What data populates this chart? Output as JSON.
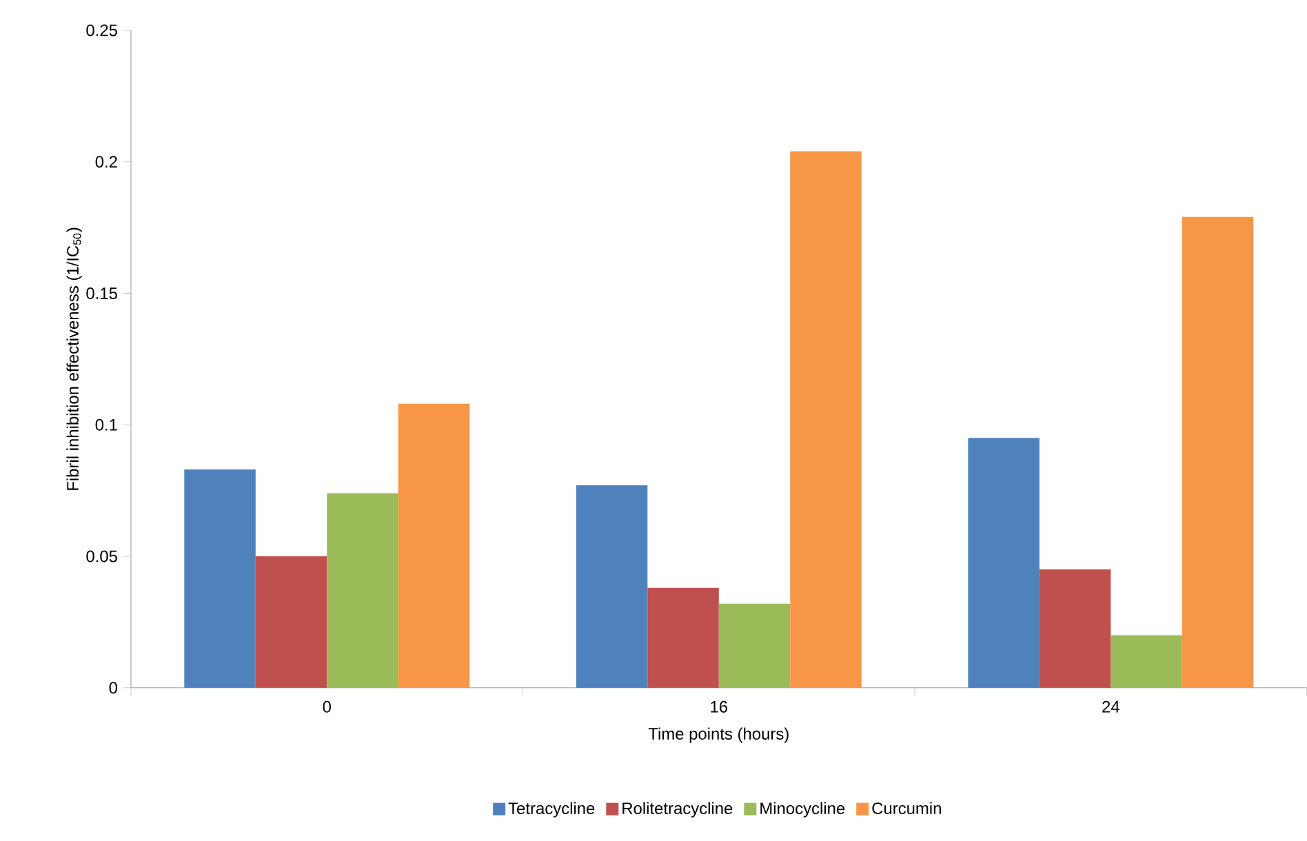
{
  "chart_data": {
    "type": "bar",
    "categories": [
      "0",
      "16",
      "24"
    ],
    "series": [
      {
        "name": "Tetracycline",
        "color": "#4f81bd",
        "values": [
          0.083,
          0.077,
          0.095
        ]
      },
      {
        "name": "Rolitetracycline",
        "color": "#c0504d",
        "values": [
          0.05,
          0.038,
          0.045
        ]
      },
      {
        "name": "Minocycline",
        "color": "#9bbb59",
        "values": [
          0.074,
          0.032,
          0.02
        ]
      },
      {
        "name": "Curcumin",
        "color": "#f79646",
        "values": [
          0.108,
          0.204,
          0.179
        ]
      }
    ],
    "xlabel": "Time points (hours)",
    "ylabel": "Fibril inhibition effectiveness (1/IC$_{50}$)",
    "ylim": [
      0,
      0.25
    ],
    "yticks": [
      0,
      0.05,
      0.1,
      0.15,
      0.2,
      0.25
    ],
    "grid": false,
    "legend": "bottom"
  }
}
